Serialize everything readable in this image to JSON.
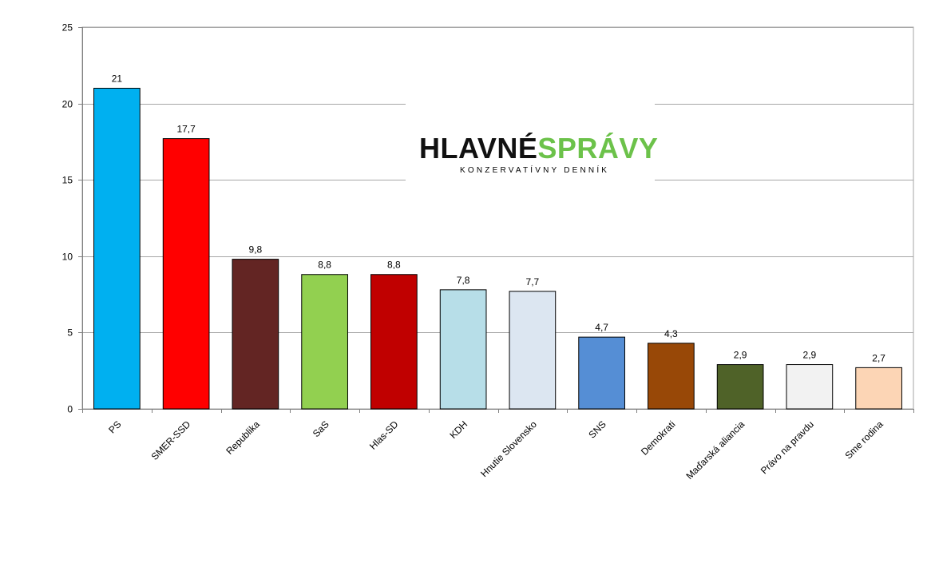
{
  "chart_data": {
    "type": "bar",
    "categories": [
      "PS",
      "SMER-SSD",
      "Republika",
      "SaS",
      "Hlas-SD",
      "KDH",
      "Hnutie Slovensko",
      "SNS",
      "Demokrati",
      "Maďarská aliancia",
      "Právo na pravdu",
      "Sme rodina"
    ],
    "values": [
      21,
      17.7,
      9.8,
      8.8,
      8.8,
      7.8,
      7.7,
      4.7,
      4.3,
      2.9,
      2.9,
      2.7
    ],
    "value_labels": [
      "21",
      "17,7",
      "9,8",
      "8,8",
      "8,8",
      "7,8",
      "7,7",
      "4,7",
      "4,3",
      "2,9",
      "2,9",
      "2,7"
    ],
    "colors": [
      "#00b0f0",
      "#ff0000",
      "#632523",
      "#92d050",
      "#c00000",
      "#b7dee8",
      "#dce6f1",
      "#558ed5",
      "#984807",
      "#4f6228",
      "#f2f2f2",
      "#fcd5b5"
    ],
    "yticks": [
      "0",
      "5",
      "10",
      "15",
      "20",
      "25"
    ],
    "ylim": [
      0,
      25
    ],
    "grid": true,
    "legend": "none",
    "title": "",
    "xlabel": "",
    "ylabel": ""
  },
  "watermark": {
    "text_black": "HLAVNÉ",
    "text_green": "SPRÁVY",
    "subtitle": "KONZERVATÍVNY DENNÍK",
    "color_black": "#111111",
    "color_green": "#6cc24a"
  }
}
